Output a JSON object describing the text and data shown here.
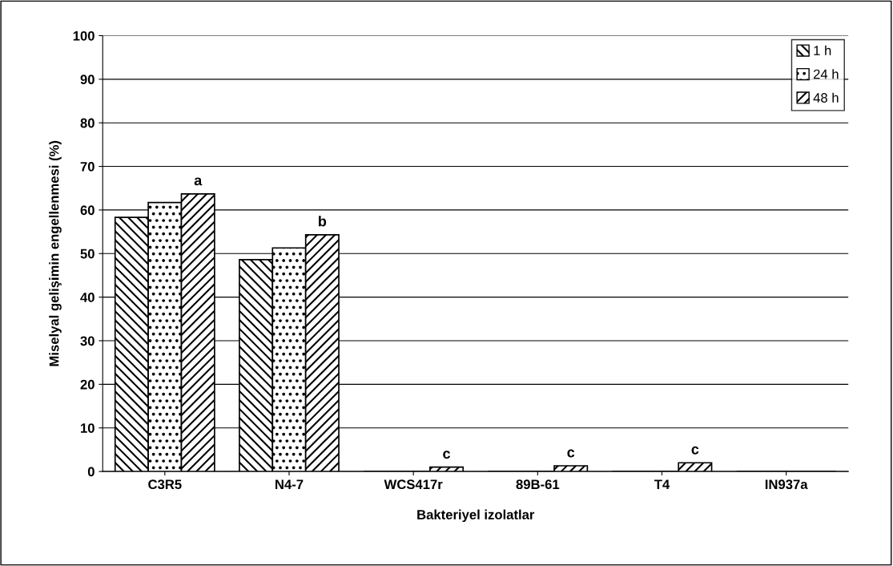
{
  "chart_data": {
    "type": "bar",
    "xlabel": "Bakteriyel izolatlar",
    "ylabel": "Miselyal gelişimin engellenmesi (%)",
    "categories": [
      "C3R5",
      "N4-7",
      "WCS417r",
      "89B-61",
      "T4",
      "IN937a"
    ],
    "series": [
      {
        "name": "1 h",
        "color": "#000000",
        "values": [
          58.3,
          48.6,
          0,
          0,
          0,
          0
        ]
      },
      {
        "name": "24 h",
        "color": "#000000",
        "values": [
          61.7,
          51.3,
          0,
          0,
          0,
          0
        ]
      },
      {
        "name": "48 h",
        "color": "#000000",
        "values": [
          63.7,
          54.3,
          1.0,
          1.3,
          2.0,
          0
        ]
      }
    ],
    "ylim": [
      0,
      100
    ],
    "yticks": [
      0,
      10,
      20,
      30,
      40,
      50,
      60,
      70,
      80,
      90,
      100
    ],
    "grid": "y",
    "legend": "top right",
    "annotations": [
      "a",
      "b",
      "c",
      "c",
      "c"
    ]
  }
}
